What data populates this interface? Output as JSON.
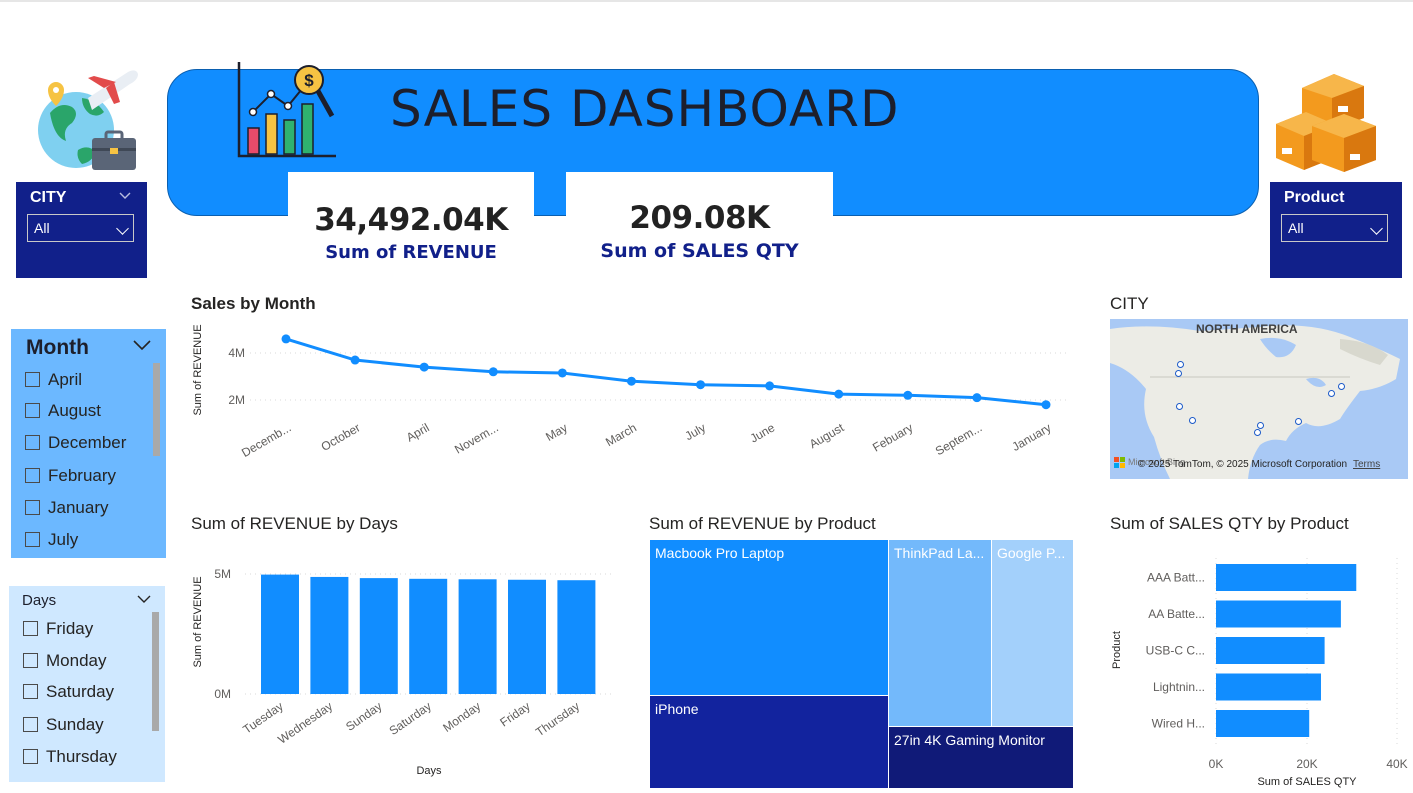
{
  "header": {
    "title": "SALES DASHBOARD"
  },
  "kpis": [
    {
      "value": "34,492.04K",
      "label": "Sum of REVENUE"
    },
    {
      "value": "209.08K",
      "label": "Sum of SALES QTY"
    }
  ],
  "city_slicer": {
    "label": "CITY",
    "selected": "All"
  },
  "product_slicer": {
    "label": "Product",
    "selected": "All"
  },
  "month_slicer": {
    "label": "Month",
    "items": [
      "April",
      "August",
      "December",
      "February",
      "January",
      "July"
    ]
  },
  "days_slicer": {
    "label": "Days",
    "items": [
      "Friday",
      "Monday",
      "Saturday",
      "Sunday",
      "Thursday"
    ]
  },
  "colors": {
    "accent": "#118dff",
    "navy": "#11208a",
    "navy_dark": "#101a78"
  },
  "sales_by_month": {
    "title": "Sales by Month",
    "ylabel": "Sum of REVENUE",
    "yticks": [
      "4M",
      "2M"
    ],
    "chart_data": {
      "type": "line",
      "categories": [
        "Decemb...",
        "October",
        "April",
        "Novem...",
        "May",
        "March",
        "July",
        "June",
        "August",
        "Febuary",
        "Septem...",
        "January"
      ],
      "values": [
        4.6,
        3.7,
        3.4,
        3.2,
        3.15,
        2.8,
        2.65,
        2.6,
        2.25,
        2.2,
        2.1,
        1.8
      ],
      "ylabel": "Sum of REVENUE",
      "ylim": [
        0,
        5
      ]
    }
  },
  "city_map": {
    "title": "CITY",
    "region_label": "NORTH AMERICA",
    "attribution": "© 2025 TomTom, © 2025 Microsoft Corporation",
    "terms": "Terms",
    "brand": "Microsoft Bing"
  },
  "revenue_by_days": {
    "title": "Sum of REVENUE by Days",
    "ylabel": "Sum of REVENUE",
    "xlabel": "Days",
    "yticks": [
      "5M",
      "0M"
    ],
    "chart_data": {
      "type": "bar",
      "categories": [
        "Tuesday",
        "Wednesday",
        "Sunday",
        "Saturday",
        "Monday",
        "Friday",
        "Thursday"
      ],
      "values": [
        5.1,
        5.0,
        4.95,
        4.92,
        4.9,
        4.88,
        4.86
      ],
      "ylabel": "Sum of REVENUE",
      "xlabel": "Days",
      "ylim": [
        0,
        5.5
      ]
    }
  },
  "revenue_by_product": {
    "title": "Sum of REVENUE by Product",
    "chart_data": {
      "type": "treemap",
      "items": [
        "Macbook Pro Laptop",
        "iPhone",
        "ThinkPad La...",
        "Google P...",
        "27in 4K Gaming Monitor"
      ]
    }
  },
  "qty_by_product": {
    "title": "Sum of SALES QTY by Product",
    "ylabel": "Product",
    "xlabel": "Sum of SALES QTY",
    "xticks": [
      "0K",
      "20K",
      "40K"
    ],
    "chart_data": {
      "type": "bar",
      "orientation": "horizontal",
      "categories": [
        "AAA Batt...",
        "AA Batte...",
        "USB-C C...",
        "Lightnin...",
        "Wired H..."
      ],
      "values": [
        31000,
        27600,
        24000,
        23200,
        20600
      ],
      "xlim": [
        0,
        40000
      ],
      "xlabel": "Sum of SALES QTY",
      "ylabel": "Product"
    }
  }
}
